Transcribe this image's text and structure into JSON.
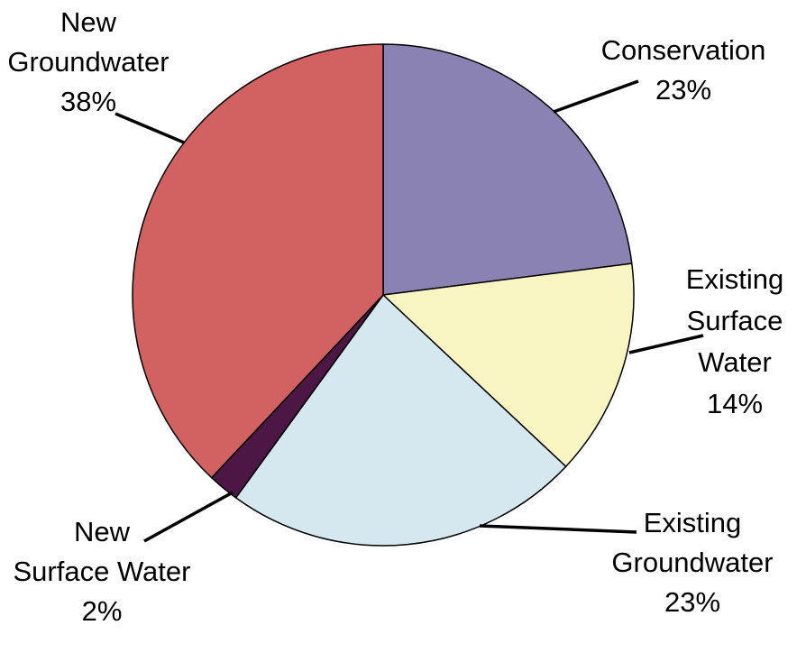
{
  "chart_data": {
    "type": "pie",
    "title": "",
    "slices": [
      {
        "name": "Conservation",
        "label_lines": [
          "Conservation"
        ],
        "percent_label": "23%",
        "value": 23,
        "color": "#8a82b3"
      },
      {
        "name": "Existing Surface Water",
        "label_lines": [
          "Existing",
          "Surface",
          "Water"
        ],
        "percent_label": "14%",
        "value": 14,
        "color": "#f8f5c2"
      },
      {
        "name": "Existing Groundwater",
        "label_lines": [
          "Existing",
          "Groundwater"
        ],
        "percent_label": "23%",
        "value": 23,
        "color": "#d5e8f0"
      },
      {
        "name": "New Surface Water",
        "label_lines": [
          "New",
          "Surface Water"
        ],
        "percent_label": "2%",
        "value": 2,
        "color": "#4c1745"
      },
      {
        "name": "New Groundwater",
        "label_lines": [
          "New",
          "Groundwater"
        ],
        "percent_label": "38%",
        "value": 38,
        "color": "#d26161"
      }
    ],
    "legend": "none",
    "start_angle": "12 o'clock",
    "direction": "clockwise"
  }
}
